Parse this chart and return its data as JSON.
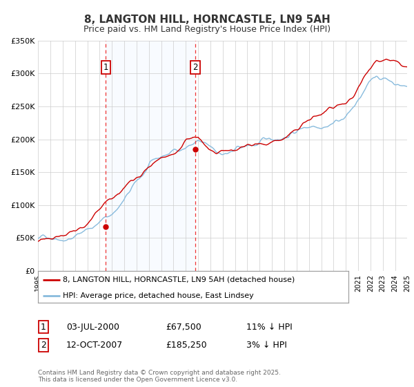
{
  "title": "8, LANGTON HILL, HORNCASTLE, LN9 5AH",
  "subtitle": "Price paid vs. HM Land Registry's House Price Index (HPI)",
  "legend_line1": "8, LANGTON HILL, HORNCASTLE, LN9 5AH (detached house)",
  "legend_line2": "HPI: Average price, detached house, East Lindsey",
  "table_row1_num": "1",
  "table_row1_date": "03-JUL-2000",
  "table_row1_price": "£67,500",
  "table_row1_hpi": "11% ↓ HPI",
  "table_row2_num": "2",
  "table_row2_date": "12-OCT-2007",
  "table_row2_price": "£185,250",
  "table_row2_hpi": "3% ↓ HPI",
  "footer": "Contains HM Land Registry data © Crown copyright and database right 2025.\nThis data is licensed under the Open Government Licence v3.0.",
  "ylim": [
    0,
    350000
  ],
  "yticks": [
    0,
    50000,
    100000,
    150000,
    200000,
    250000,
    300000,
    350000
  ],
  "ytick_labels": [
    "£0",
    "£50K",
    "£100K",
    "£150K",
    "£200K",
    "£250K",
    "£300K",
    "£350K"
  ],
  "sale1_year": 2000.5,
  "sale1_price": 67500,
  "sale2_year": 2007.78,
  "sale2_price": 185250,
  "red_color": "#cc0000",
  "blue_color": "#88bbdd",
  "shade_color": "#ddeeff",
  "dashed_color": "#ee3333",
  "background_color": "#ffffff",
  "grid_color": "#cccccc"
}
